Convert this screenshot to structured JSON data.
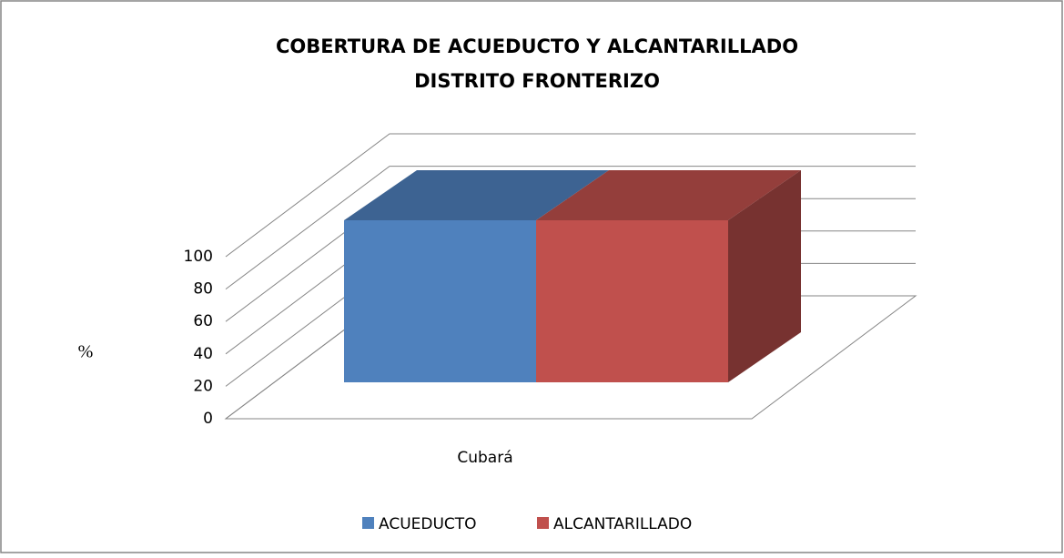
{
  "chart_data": {
    "type": "bar3d",
    "title": "COBERTURA DE ACUEDUCTO Y ALCANTARILLADO",
    "subtitle": "DISTRITO FRONTERIZO",
    "y_label": "%",
    "categories": [
      "Cubará"
    ],
    "series": [
      {
        "name": "ACUEDUCTO",
        "color": "#4f81bd",
        "values": [
          100
        ]
      },
      {
        "name": "ALCANTARILLADO",
        "color": "#c0504d",
        "values": [
          100
        ]
      }
    ],
    "ylim": [
      0,
      100
    ],
    "yticks": [
      0,
      20,
      40,
      60,
      80,
      100
    ],
    "grid": true,
    "legend": "bottom"
  }
}
